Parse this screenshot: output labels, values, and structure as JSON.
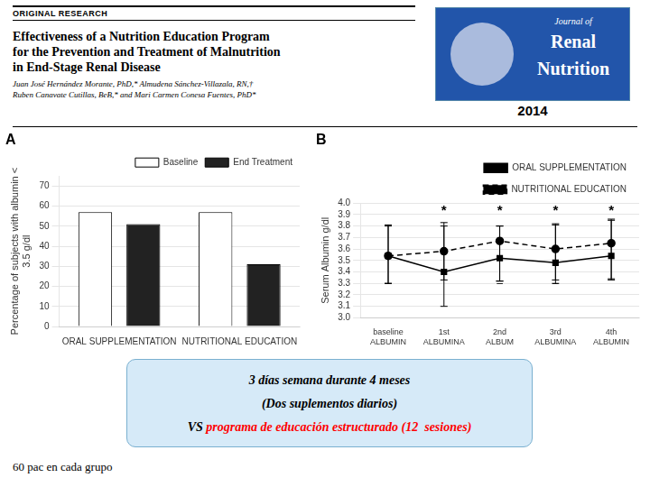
{
  "header": "ORIGINAL RESEARCH",
  "title": [
    "Effectiveness of a Nutrition Education Program",
    "for the Prevention and Treatment of Malnutrition",
    "in End-Stage Renal Disease"
  ],
  "subtitle": [
    "Juan José Hernández Morante, PhD,* Almudena Sánchez-Villazala, RN,†",
    "Ruben Canavate Cutillas, BeB,* and Mari Carmen Conesa Fuentes, PhD*"
  ],
  "journal": [
    "Journal of",
    "Renal",
    "Nutrition"
  ],
  "year": "2014",
  "annotations": [
    [
      {
        "text": "3 días semana durante 4 meses",
        "color": "#000000"
      }
    ],
    [
      {
        "text": "(Dos suplementos diarios)",
        "color": "#000000"
      }
    ],
    [
      {
        "text": "VS ",
        "color": "#000000"
      },
      {
        "text": "programa de educación estructurado (12  sesiones)",
        "color": "#ff0000"
      }
    ]
  ],
  "footnote": "60 pac en cada grupo",
  "chart_data": [
    {
      "type": "bar",
      "title": "A",
      "categories": [
        "ORAL SUPPLEMENTATION",
        "NUTRITIONAL EDUCATION"
      ],
      "series": [
        {
          "name": "Baseline",
          "color": "#ffffff",
          "values": [
            57,
            57
          ]
        },
        {
          "name": "End Treatment",
          "color": "#222222",
          "values": [
            51,
            31
          ]
        }
      ],
      "ylabel": "Percentage of subjects with albumin <\n3.5 g/dl",
      "ylim": [
        0,
        75
      ],
      "yticks": [
        0,
        10,
        20,
        30,
        40,
        50,
        60,
        70
      ],
      "grid": "y",
      "legend": "upper right"
    },
    {
      "type": "line",
      "title": "B",
      "x": [
        0,
        1,
        2,
        3,
        4
      ],
      "xlim": [
        -0.5,
        4.5
      ],
      "xticks": [
        {
          "value": 0,
          "label": "baseline\nALBUMIN"
        },
        {
          "value": 1,
          "label": "1st\nALBUMINA"
        },
        {
          "value": 2,
          "label": "2nd\nALBUM"
        },
        {
          "value": 3,
          "label": "3rd\nALBUMINA"
        },
        {
          "value": 4,
          "label": "4th\nALBUMIN"
        }
      ],
      "series": [
        {
          "name": "ORAL SUPPLEMENTATION",
          "color": "#000000",
          "marker": "square",
          "line_style": "solid",
          "values": [
            3.54,
            3.4,
            3.52,
            3.48,
            3.54
          ],
          "err_lo": [
            0.24,
            0.3,
            0.2,
            0.18,
            0.2
          ],
          "err_hi": [
            0.27,
            0.43,
            0.28,
            0.33,
            0.32
          ]
        },
        {
          "name": "NUTRITIONAL EDUCATION",
          "color": "#000000",
          "marker": "circle",
          "line_style": "dashed",
          "values": [
            3.54,
            3.58,
            3.67,
            3.6,
            3.65
          ],
          "err_lo": [
            0.24,
            0.25,
            0.35,
            0.27,
            0.32
          ],
          "err_hi": [
            0.26,
            0.22,
            0.13,
            0.22,
            0.2
          ]
        }
      ],
      "ylabel": "Serum Albumin g/dl",
      "ylim": [
        3.0,
        4.0
      ],
      "yticks": [
        {
          "value": 3.0,
          "label": "3.0"
        },
        3.1,
        3.2,
        3.3,
        3.4,
        3.5,
        3.6,
        3.7,
        3.8,
        3.9,
        {
          "value": 4.0,
          "label": "4.0"
        }
      ],
      "grid": "y",
      "legend": "upper right",
      "annotations": [
        {
          "text": "*",
          "x": 1,
          "y": 3.96
        },
        {
          "text": "*",
          "x": 2,
          "y": 3.96
        },
        {
          "text": "*",
          "x": 3,
          "y": 3.96
        },
        {
          "text": "*",
          "x": 4,
          "y": 3.96
        },
        {
          "text": "–",
          "x": 0,
          "y": 3.3
        },
        {
          "text": "–",
          "x": 2,
          "y": 3.3
        },
        {
          "text": "–",
          "x": 3,
          "y": 3.3
        }
      ]
    }
  ]
}
